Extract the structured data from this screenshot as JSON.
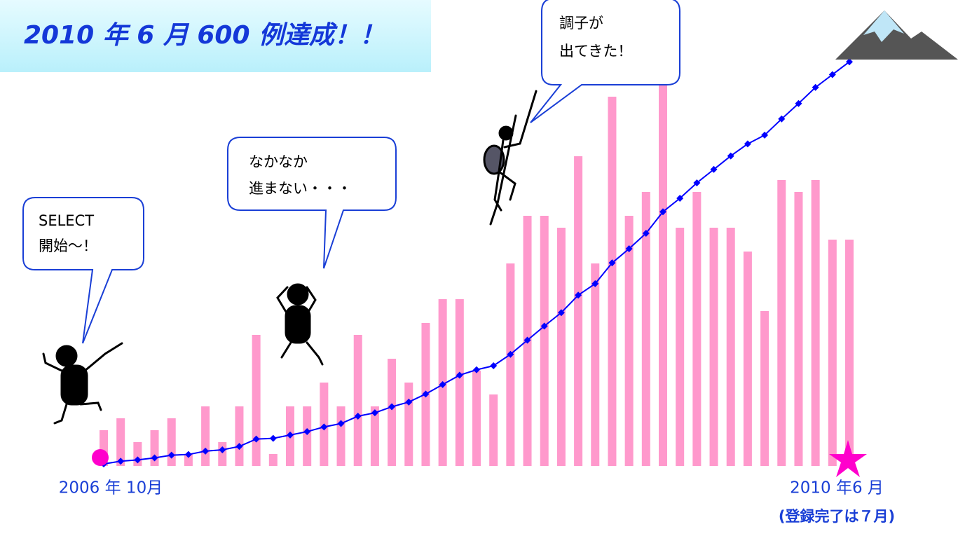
{
  "chart_data": {
    "type": "bar",
    "title": "2010 年 6 月  600 例達成！！",
    "categories": [
      "2006 年 10月",
      null,
      null,
      null,
      null,
      null,
      null,
      null,
      null,
      null,
      null,
      null,
      null,
      null,
      null,
      null,
      null,
      null,
      null,
      null,
      null,
      null,
      null,
      null,
      null,
      null,
      null,
      null,
      null,
      null,
      null,
      null,
      null,
      null,
      null,
      null,
      null,
      null,
      null,
      null,
      null,
      null,
      null,
      null,
      "2010 年6 月"
    ],
    "note": "(登録完了は７月)",
    "series": [
      {
        "type": "bar",
        "color": "#ff99cc",
        "values": [
          3,
          4,
          2,
          3,
          4,
          1,
          5,
          2,
          5,
          11,
          1,
          5,
          5,
          7,
          5,
          11,
          5,
          9,
          7,
          12,
          14,
          14,
          8,
          6,
          17,
          21,
          21,
          20,
          26,
          17,
          31,
          21,
          23,
          32,
          20,
          23,
          20,
          20,
          18,
          13,
          24,
          23,
          24,
          19,
          19
        ]
      },
      {
        "type": "line",
        "axis": "y2",
        "color": "#0000ff",
        "values": [
          3,
          7,
          9,
          12,
          16,
          17,
          22,
          24,
          29,
          40,
          41,
          46,
          51,
          58,
          63,
          74,
          79,
          88,
          95,
          107,
          121,
          135,
          143,
          149,
          166,
          187,
          208,
          228,
          254,
          271,
          302,
          323,
          346,
          378,
          398,
          421,
          441,
          461,
          479,
          492,
          516,
          539,
          563,
          582,
          601
        ]
      }
    ],
    "ylim": [
      0,
      35
    ],
    "y2lim": [
      0,
      620
    ],
    "annotations": [
      {
        "lines": [
          "SELECT",
          "開始〜！"
        ]
      },
      {
        "lines": [
          "なかなか",
          "進まない・・・"
        ]
      },
      {
        "lines": [
          "調子が",
          "出てきた！"
        ]
      }
    ]
  }
}
